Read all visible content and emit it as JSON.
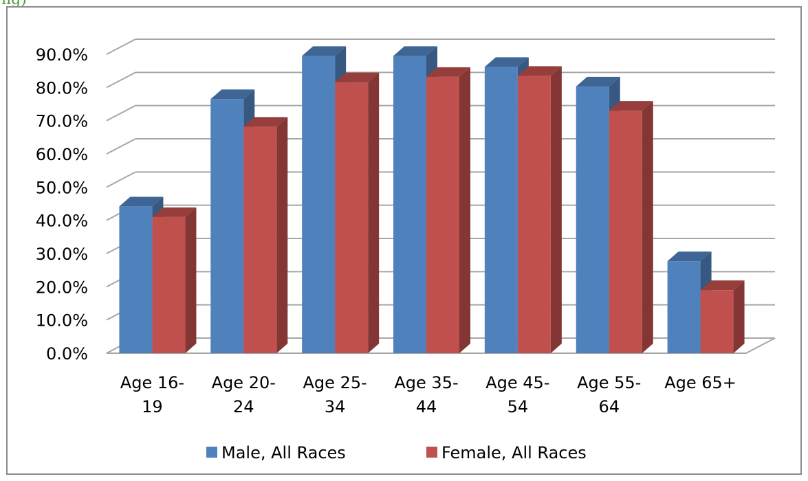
{
  "page_heading": "ng)",
  "chart_data": {
    "type": "bar",
    "title": "",
    "xlabel": "",
    "ylabel": "",
    "ylim": [
      0,
      90
    ],
    "yticks": [
      "0.0%",
      "10.0%",
      "20.0%",
      "30.0%",
      "40.0%",
      "50.0%",
      "60.0%",
      "70.0%",
      "80.0%",
      "90.0%"
    ],
    "categories": [
      [
        "Age 16-",
        "19"
      ],
      [
        "Age 20-",
        "24"
      ],
      [
        "Age 25-",
        "34"
      ],
      [
        "Age 35-",
        "44"
      ],
      [
        "Age 45-",
        "54"
      ],
      [
        "Age 55-",
        "64"
      ],
      [
        "Age 65+"
      ]
    ],
    "series": [
      {
        "name": "Male, All Races",
        "values": [
          44.2,
          76.5,
          89.5,
          89.5,
          86.2,
          80.3,
          27.7
        ],
        "color": "#4f81bd"
      },
      {
        "name": "Female, All Races",
        "values": [
          41.0,
          68.2,
          81.6,
          83.2,
          83.5,
          73.0,
          19.0
        ],
        "color": "#c0504d"
      }
    ],
    "grid": true,
    "legend_position": "bottom",
    "style": "3d-clustered-column"
  }
}
